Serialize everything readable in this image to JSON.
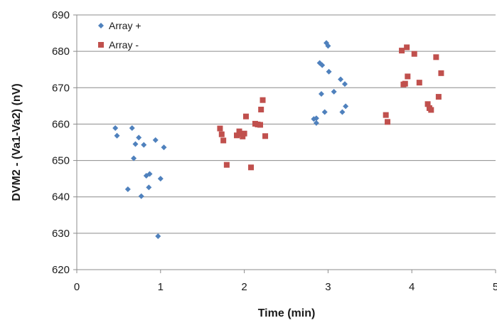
{
  "chart_data": {
    "type": "scatter",
    "title": "",
    "xlabel": "Time (min)",
    "ylabel": "DVM2 - (Va1-Va2) (nV)",
    "xlim": [
      0,
      5
    ],
    "ylim": [
      620,
      690
    ],
    "xticks": [
      0,
      1,
      2,
      3,
      4,
      5
    ],
    "yticks": [
      620,
      630,
      640,
      650,
      660,
      670,
      680,
      690
    ],
    "grid": "horizontal",
    "legend_position": "top-left",
    "series": [
      {
        "name": "Array +",
        "marker": "diamond",
        "color": "#4f81bd",
        "points": [
          [
            0.46,
            658.9
          ],
          [
            0.48,
            656.8
          ],
          [
            0.61,
            642.1
          ],
          [
            0.66,
            658.9
          ],
          [
            0.68,
            650.6
          ],
          [
            0.7,
            654.5
          ],
          [
            0.74,
            656.3
          ],
          [
            0.77,
            640.2
          ],
          [
            0.8,
            654.3
          ],
          [
            0.83,
            645.8
          ],
          [
            0.87,
            646.3
          ],
          [
            0.86,
            642.6
          ],
          [
            0.94,
            655.6
          ],
          [
            0.97,
            629.2
          ],
          [
            1.0,
            645.0
          ],
          [
            1.04,
            653.6
          ],
          [
            2.83,
            661.4
          ],
          [
            2.86,
            660.3
          ],
          [
            2.86,
            661.6
          ],
          [
            2.9,
            676.8
          ],
          [
            2.92,
            668.3
          ],
          [
            2.93,
            676.2
          ],
          [
            2.96,
            663.3
          ],
          [
            2.98,
            682.3
          ],
          [
            3.0,
            681.5
          ],
          [
            3.01,
            674.4
          ],
          [
            3.07,
            668.9
          ],
          [
            3.15,
            672.3
          ],
          [
            3.17,
            663.3
          ],
          [
            3.2,
            671.0
          ],
          [
            3.21,
            664.9
          ]
        ]
      },
      {
        "name": "Array -",
        "marker": "square",
        "color": "#c0504d",
        "points": [
          [
            1.71,
            658.8
          ],
          [
            1.73,
            657.2
          ],
          [
            1.75,
            655.5
          ],
          [
            1.79,
            648.8
          ],
          [
            1.91,
            656.9
          ],
          [
            1.94,
            658.0
          ],
          [
            1.96,
            657.3
          ],
          [
            1.98,
            656.6
          ],
          [
            2.0,
            657.4
          ],
          [
            2.02,
            662.1
          ],
          [
            2.08,
            648.1
          ],
          [
            2.13,
            660.1
          ],
          [
            2.16,
            659.9
          ],
          [
            2.19,
            659.8
          ],
          [
            2.2,
            664.0
          ],
          [
            2.22,
            666.6
          ],
          [
            2.25,
            656.7
          ],
          [
            3.69,
            662.5
          ],
          [
            3.71,
            660.6
          ],
          [
            3.88,
            680.2
          ],
          [
            3.9,
            670.9
          ],
          [
            3.92,
            671.1
          ],
          [
            3.94,
            681.1
          ],
          [
            3.95,
            673.1
          ],
          [
            4.03,
            679.3
          ],
          [
            4.09,
            671.4
          ],
          [
            4.19,
            665.5
          ],
          [
            4.21,
            664.4
          ],
          [
            4.23,
            663.9
          ],
          [
            4.29,
            678.4
          ],
          [
            4.32,
            667.5
          ],
          [
            4.35,
            674.0
          ]
        ]
      }
    ]
  }
}
